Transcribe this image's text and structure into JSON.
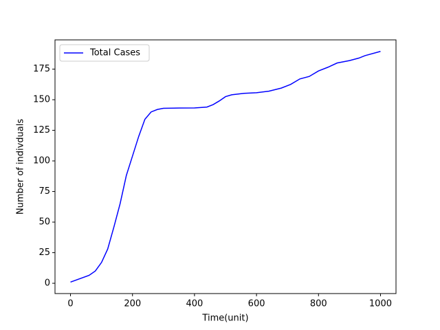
{
  "chart_data": {
    "type": "line",
    "xlabel": "Time(unit)",
    "ylabel": "Number of indivduals",
    "x": [
      0,
      60,
      80,
      100,
      120,
      140,
      160,
      180,
      200,
      220,
      240,
      260,
      280,
      300,
      350,
      400,
      440,
      460,
      480,
      500,
      520,
      560,
      600,
      640,
      680,
      710,
      740,
      770,
      800,
      830,
      860,
      900,
      930,
      950,
      1000
    ],
    "series": [
      {
        "name": "Total Cases",
        "color": "#0000ff",
        "values": [
          1,
          6.5,
          10,
          17,
          28,
          46,
          65,
          88,
          104,
          120,
          134,
          140,
          142,
          143,
          143.2,
          143.3,
          144,
          146,
          149,
          152.5,
          154,
          155.2,
          155.7,
          157,
          159.5,
          162.5,
          167,
          169,
          173.5,
          176.5,
          180,
          182,
          184,
          186,
          189.5
        ]
      }
    ],
    "xlim": [
      -50,
      1050
    ],
    "xticks": [
      0,
      200,
      400,
      600,
      800,
      1000
    ],
    "ylim": [
      -8.4,
      198.9
    ],
    "yticks": [
      0,
      25,
      50,
      75,
      100,
      125,
      150,
      175
    ],
    "grid": false,
    "legend": "upper-left"
  }
}
